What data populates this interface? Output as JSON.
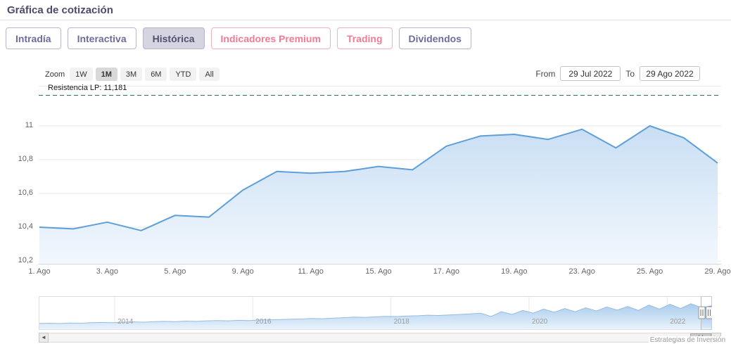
{
  "page": {
    "title": "Gráfica de cotización",
    "credit": "Estrategias de Inversión"
  },
  "palette": {
    "title": "#4b4b6b",
    "purple": "#6c6c9c",
    "purple_border": "#b6b6d2",
    "pink": "#ef7b95",
    "pink_border": "#f4b0c0",
    "tab_active_bg": "#d5d5e2"
  },
  "icons": {
    "scrollbar_left": "◄",
    "scrollbar_right": "►"
  },
  "tabs": [
    {
      "label": "Intradía",
      "style": "purple",
      "active": false
    },
    {
      "label": "Interactiva",
      "style": "purple",
      "active": false
    },
    {
      "label": "Histórica",
      "style": "purple",
      "active": true
    },
    {
      "label": "Indicadores Premium",
      "style": "pink",
      "active": false
    },
    {
      "label": "Trading",
      "style": "pink",
      "active": false
    },
    {
      "label": "Dividendos",
      "style": "purple",
      "active": false
    }
  ],
  "toolbar": {
    "zoom_label": "Zoom",
    "zoom_buttons": [
      {
        "label": "1W",
        "selected": false
      },
      {
        "label": "1M",
        "selected": true
      },
      {
        "label": "3M",
        "selected": false
      },
      {
        "label": "6M",
        "selected": false
      },
      {
        "label": "YTD",
        "selected": false
      },
      {
        "label": "All",
        "selected": false
      }
    ],
    "from_label": "From",
    "from_value": "29 Jul 2022",
    "to_label": "To",
    "to_value": "29 Ago 2022"
  },
  "chart_data": {
    "type": "area",
    "title": "",
    "annotation": {
      "label": "Resistencia LP: 11,181",
      "value": 11.181,
      "color": "#1f7a46",
      "style": "dashed"
    },
    "main": {
      "dates": [
        "1 Ago",
        "2 Ago",
        "3 Ago",
        "4 Ago",
        "5 Ago",
        "8 Ago",
        "9 Ago",
        "10 Ago",
        "11 Ago",
        "12 Ago",
        "15 Ago",
        "16 Ago",
        "17 Ago",
        "18 Ago",
        "19 Ago",
        "22 Ago",
        "23 Ago",
        "24 Ago",
        "25 Ago",
        "26 Ago",
        "29 Ago"
      ],
      "values": [
        10.4,
        10.39,
        10.43,
        10.38,
        10.47,
        10.46,
        10.62,
        10.73,
        10.72,
        10.73,
        10.76,
        10.74,
        10.88,
        10.94,
        10.95,
        10.92,
        10.98,
        10.87,
        11.0,
        10.93,
        10.78
      ],
      "yticks": {
        "labels": [
          "11",
          "10,8",
          "10,6",
          "10,4",
          "10,2"
        ],
        "values": [
          11,
          10.8,
          10.6,
          10.4,
          10.2
        ]
      },
      "ylim": [
        10.15,
        11.25
      ],
      "xticks": [
        {
          "label": "1. Ago",
          "index": 0
        },
        {
          "label": "3. Ago",
          "index": 2
        },
        {
          "label": "5. Ago",
          "index": 4
        },
        {
          "label": "9. Ago",
          "index": 6
        },
        {
          "label": "11. Ago",
          "index": 8
        },
        {
          "label": "15. Ago",
          "index": 10
        },
        {
          "label": "17. Ago",
          "index": 12
        },
        {
          "label": "19. Ago",
          "index": 14
        },
        {
          "label": "23. Ago",
          "index": 16
        },
        {
          "label": "25. Ago",
          "index": 18
        },
        {
          "label": "29. Ago",
          "index": 20
        }
      ],
      "grid": true,
      "line_color": "#5e9fd9",
      "fill_top": "#c9def4",
      "fill_bottom": "#f2f8fd"
    },
    "navigator": {
      "years": [
        2014,
        2016,
        2018,
        2020,
        2022
      ],
      "x_start": 2012.9,
      "x_end": 2022.65,
      "selected_range": "last month",
      "line_color": "#5f9ad2",
      "fill_top": "#7db1e3",
      "fill_bottom": "#dcebfa",
      "values": [
        0.16,
        0.17,
        0.16,
        0.18,
        0.17,
        0.19,
        0.2,
        0.19,
        0.21,
        0.22,
        0.21,
        0.23,
        0.24,
        0.23,
        0.25,
        0.24,
        0.26,
        0.27,
        0.26,
        0.28,
        0.27,
        0.29,
        0.3,
        0.31,
        0.32,
        0.33,
        0.35,
        0.34,
        0.36,
        0.38,
        0.4,
        0.39,
        0.41,
        0.43,
        0.42,
        0.44,
        0.45,
        0.47,
        0.46,
        0.48,
        0.5,
        0.52,
        0.55,
        0.42,
        0.6,
        0.5,
        0.65,
        0.55,
        0.7,
        0.58,
        0.72,
        0.6,
        0.75,
        0.63,
        0.78,
        0.66,
        0.8,
        0.65,
        0.85,
        0.7,
        0.88,
        0.72,
        0.9,
        0.75,
        0.82
      ]
    }
  }
}
